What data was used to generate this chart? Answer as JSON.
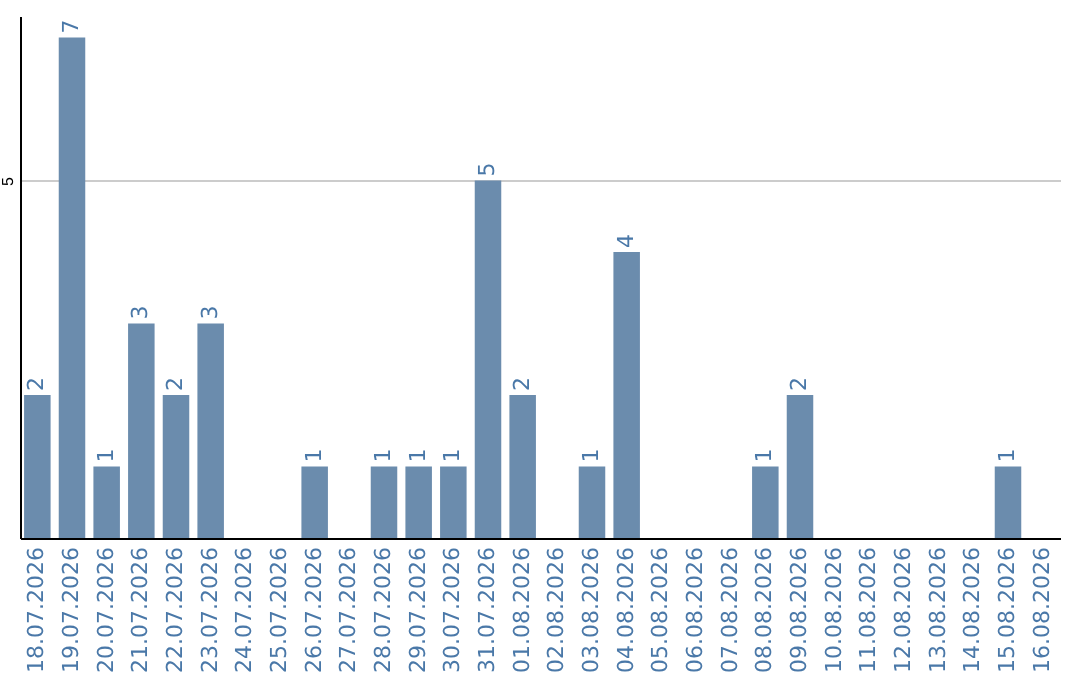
{
  "chart_data": {
    "type": "bar",
    "categories": [
      "18.07.2026",
      "19.07.2026",
      "20.07.2026",
      "21.07.2026",
      "22.07.2026",
      "23.07.2026",
      "24.07.2026",
      "25.07.2026",
      "26.07.2026",
      "27.07.2026",
      "28.07.2026",
      "29.07.2026",
      "30.07.2026",
      "31.07.2026",
      "01.08.2026",
      "02.08.2026",
      "03.08.2026",
      "04.08.2026",
      "05.08.2026",
      "06.08.2026",
      "07.08.2026",
      "08.08.2026",
      "09.08.2026",
      "10.08.2026",
      "11.08.2026",
      "12.08.2026",
      "13.08.2026",
      "14.08.2026",
      "15.08.2026",
      "16.08.2026"
    ],
    "values": [
      2,
      7,
      1,
      3,
      2,
      3,
      0,
      0,
      1,
      0,
      1,
      1,
      1,
      5,
      2,
      0,
      1,
      4,
      0,
      0,
      0,
      1,
      2,
      0,
      0,
      0,
      0,
      0,
      1,
      0
    ],
    "value_labels": [
      "2",
      "7",
      "1",
      "3",
      "2",
      "3",
      null,
      null,
      "1",
      null,
      "1",
      "1",
      "1",
      "5",
      "2",
      null,
      "1",
      "4",
      null,
      null,
      null,
      "1",
      "2",
      null,
      null,
      null,
      null,
      null,
      "1",
      null
    ],
    "color": "#6b8cad",
    "ylim": [
      0,
      7.3
    ],
    "yticks": [
      5
    ],
    "grid": "y"
  }
}
